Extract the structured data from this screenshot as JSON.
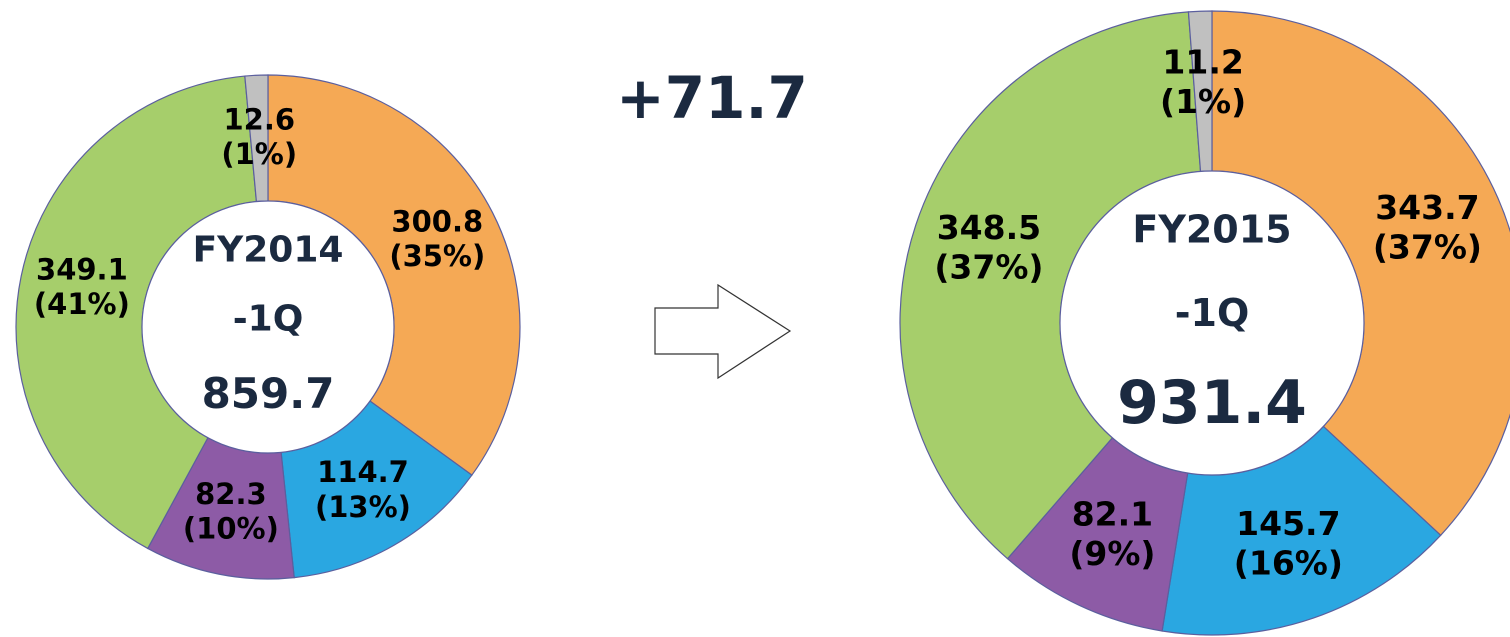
{
  "annotation": "+71.7",
  "chart_data": [
    {
      "type": "donut",
      "title": "FY2014",
      "subtitle": "-1Q",
      "total": 859.7,
      "values": [
        300.8,
        114.7,
        82.3,
        349.1,
        12.6
      ],
      "percent_labels": [
        "(35%)",
        "(13%)",
        "(10%)",
        "(41%)",
        "(1%)"
      ],
      "colors": [
        "#f5a955",
        "#2aa7e1",
        "#8d5ba6",
        "#a6ce6b",
        "#c0c0c0"
      ]
    },
    {
      "type": "donut",
      "title": "FY2015",
      "subtitle": "-1Q",
      "total": 931.4,
      "values": [
        343.7,
        145.7,
        82.1,
        348.5,
        11.2
      ],
      "percent_labels": [
        "(37%)",
        "(16%)",
        "(9%)",
        "(37%)",
        "(1%)"
      ],
      "colors": [
        "#f5a955",
        "#2aa7e1",
        "#8d5ba6",
        "#a6ce6b",
        "#c0c0c0"
      ]
    }
  ]
}
